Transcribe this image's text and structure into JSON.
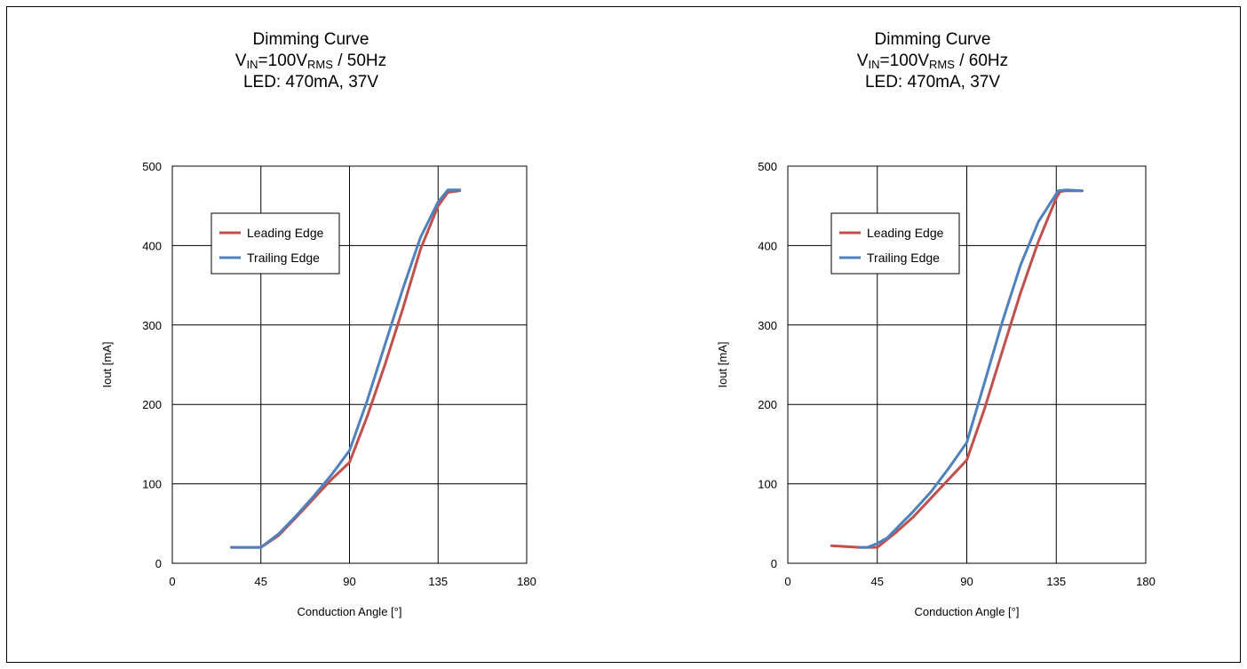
{
  "chart_data": [
    {
      "type": "line",
      "title": {
        "line1": "Dimming Curve",
        "v_main": "V",
        "v_sub": "IN",
        "v_eq": "=100V",
        "v_sub2": "RMS",
        "v_freq": " / 50Hz",
        "line3": "LED: 470mA, 37V"
      },
      "xlabel": "Conduction Angle  [°]",
      "ylabel": "Iout [mA]",
      "xlim": [
        0,
        180
      ],
      "ylim": [
        0,
        500
      ],
      "xticks": [
        0,
        45,
        90,
        135,
        180
      ],
      "yticks": [
        0,
        100,
        200,
        300,
        400,
        500
      ],
      "grid": true,
      "legend_position": "upper-left",
      "series": [
        {
          "name": "Leading Edge",
          "color": "#c0504d",
          "x": [
            30,
            45,
            54,
            63,
            72,
            81,
            90,
            99,
            108,
            117,
            126,
            135,
            140,
            146
          ],
          "y": [
            20,
            20,
            35,
            58,
            82,
            106,
            127,
            185,
            250,
            320,
            395,
            450,
            467,
            469
          ]
        },
        {
          "name": "Trailing Edge",
          "color": "#4f81bd",
          "x": [
            30,
            45,
            54,
            63,
            72,
            81,
            90,
            99,
            108,
            117,
            126,
            135,
            140,
            146
          ],
          "y": [
            20,
            20,
            37,
            60,
            85,
            112,
            142,
            205,
            275,
            345,
            410,
            455,
            470,
            470
          ]
        }
      ]
    },
    {
      "type": "line",
      "title": {
        "line1": "Dimming Curve",
        "v_main": "V",
        "v_sub": "IN",
        "v_eq": "=100V",
        "v_sub2": "RMS",
        "v_freq": " / 60Hz",
        "line3": "LED: 470mA, 37V"
      },
      "xlabel": "Conduction Angle  [°]",
      "ylabel": "Iout [mA]",
      "xlim": [
        0,
        180
      ],
      "ylim": [
        0,
        500
      ],
      "xticks": [
        0,
        45,
        90,
        135,
        180
      ],
      "yticks": [
        0,
        100,
        200,
        300,
        400,
        500
      ],
      "grid": true,
      "legend_position": "upper-left",
      "series": [
        {
          "name": "Leading Edge",
          "color": "#c0504d",
          "x": [
            22,
            36,
            45,
            54,
            63,
            72,
            81,
            90,
            99,
            108,
            117,
            126,
            135,
            137,
            140,
            148
          ],
          "y": [
            22,
            20,
            20,
            38,
            58,
            82,
            106,
            130,
            195,
            268,
            340,
            405,
            460,
            468,
            469,
            469
          ]
        },
        {
          "name": "Trailing Edge",
          "color": "#4f81bd",
          "x": [
            36,
            40,
            45,
            50,
            63,
            72,
            81,
            90,
            99,
            108,
            117,
            126,
            136,
            140,
            148
          ],
          "y": [
            20,
            20,
            25,
            32,
            65,
            90,
            120,
            152,
            228,
            305,
            375,
            430,
            469,
            470,
            469
          ]
        }
      ]
    }
  ]
}
